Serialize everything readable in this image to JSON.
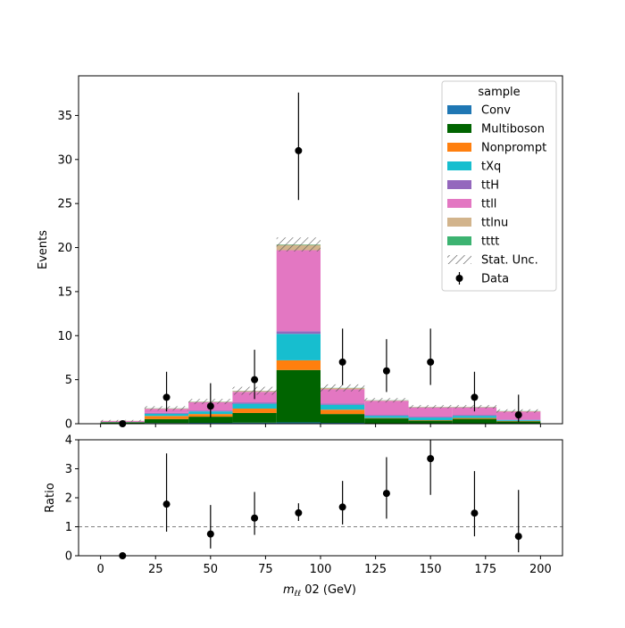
{
  "chart_data": {
    "type": "bar",
    "stacked": true,
    "bin_edges": [
      0,
      20,
      40,
      60,
      80,
      100,
      120,
      140,
      160,
      180,
      200
    ],
    "x": [
      10,
      30,
      50,
      70,
      90,
      110,
      130,
      150,
      170,
      190
    ],
    "xlim": [
      -10,
      210
    ],
    "xticks": [
      0,
      25,
      50,
      75,
      100,
      125,
      150,
      175,
      200
    ],
    "xlabel_main": "m",
    "xlabel_sub": "ℓℓ",
    "xlabel_rest": " 02 (GeV)",
    "top_panel": {
      "ylabel": "Events",
      "ylim": [
        0,
        39.5
      ],
      "yticks": [
        0,
        5,
        10,
        15,
        20,
        25,
        30,
        35
      ],
      "series": [
        {
          "name": "Conv",
          "color": "#1f77b4",
          "values": [
            0.05,
            0.08,
            0.1,
            0.12,
            0.15,
            0.1,
            0.05,
            0.05,
            0.05,
            0.02
          ]
        },
        {
          "name": "Multiboson",
          "color": "#006400",
          "values": [
            0.1,
            0.45,
            0.7,
            1.1,
            5.95,
            1.0,
            0.55,
            0.3,
            0.5,
            0.25
          ]
        },
        {
          "name": "Nonprompt",
          "color": "#ff7f0e",
          "values": [
            0.02,
            0.35,
            0.3,
            0.5,
            1.1,
            0.5,
            0.05,
            0.05,
            0.1,
            0.05
          ]
        },
        {
          "name": "tXq",
          "color": "#17becf",
          "values": [
            0.02,
            0.25,
            0.3,
            0.55,
            3.0,
            0.55,
            0.25,
            0.3,
            0.25,
            0.1
          ]
        },
        {
          "name": "ttH",
          "color": "#9467bd",
          "values": [
            0.02,
            0.1,
            0.1,
            0.15,
            0.3,
            0.15,
            0.1,
            0.1,
            0.1,
            0.05
          ]
        },
        {
          "name": "ttll",
          "color": "#e377c2",
          "values": [
            0.1,
            0.45,
            0.95,
            1.2,
            9.2,
            1.6,
            1.6,
            1.05,
            0.85,
            0.9
          ]
        },
        {
          "name": "ttlnu",
          "color": "#d2b48c",
          "values": [
            0.02,
            0.05,
            0.05,
            0.1,
            0.6,
            0.15,
            0.05,
            0.05,
            0.05,
            0.05
          ]
        },
        {
          "name": "tttt",
          "color": "#3cb371",
          "values": [
            0.0,
            0.02,
            0.02,
            0.02,
            0.05,
            0.02,
            0.02,
            0.02,
            0.02,
            0.02
          ]
        }
      ],
      "stat_unc": [
        0.1,
        0.25,
        0.3,
        0.45,
        0.8,
        0.4,
        0.25,
        0.2,
        0.2,
        0.2
      ],
      "data": {
        "name": "Data",
        "values": [
          0,
          3,
          2,
          5,
          31,
          7,
          6,
          7,
          3,
          1
        ],
        "err_low": [
          0,
          1.6,
          1.3,
          2.2,
          5.6,
          2.6,
          2.4,
          2.6,
          1.6,
          0.8
        ],
        "err_high": [
          0,
          2.9,
          2.6,
          3.4,
          6.6,
          3.8,
          3.6,
          3.8,
          2.9,
          2.3
        ]
      },
      "legend": {
        "title": "sample",
        "stat_label": "Stat. Unc.",
        "placement": "top-right"
      }
    },
    "ratio_panel": {
      "ylabel": "Ratio",
      "ylim": [
        0,
        4
      ],
      "yticks": [
        0,
        1,
        2,
        3,
        4
      ],
      "reference_line": 1,
      "values": [
        0,
        1.78,
        0.75,
        1.3,
        1.48,
        1.68,
        2.15,
        3.35,
        1.47,
        0.67
      ],
      "err_low": [
        0,
        0.95,
        0.5,
        0.58,
        0.28,
        0.6,
        0.87,
        1.25,
        0.8,
        0.55
      ],
      "err_high": [
        0,
        1.75,
        1.0,
        0.9,
        0.33,
        0.9,
        1.25,
        0.65,
        1.45,
        1.6
      ]
    }
  }
}
